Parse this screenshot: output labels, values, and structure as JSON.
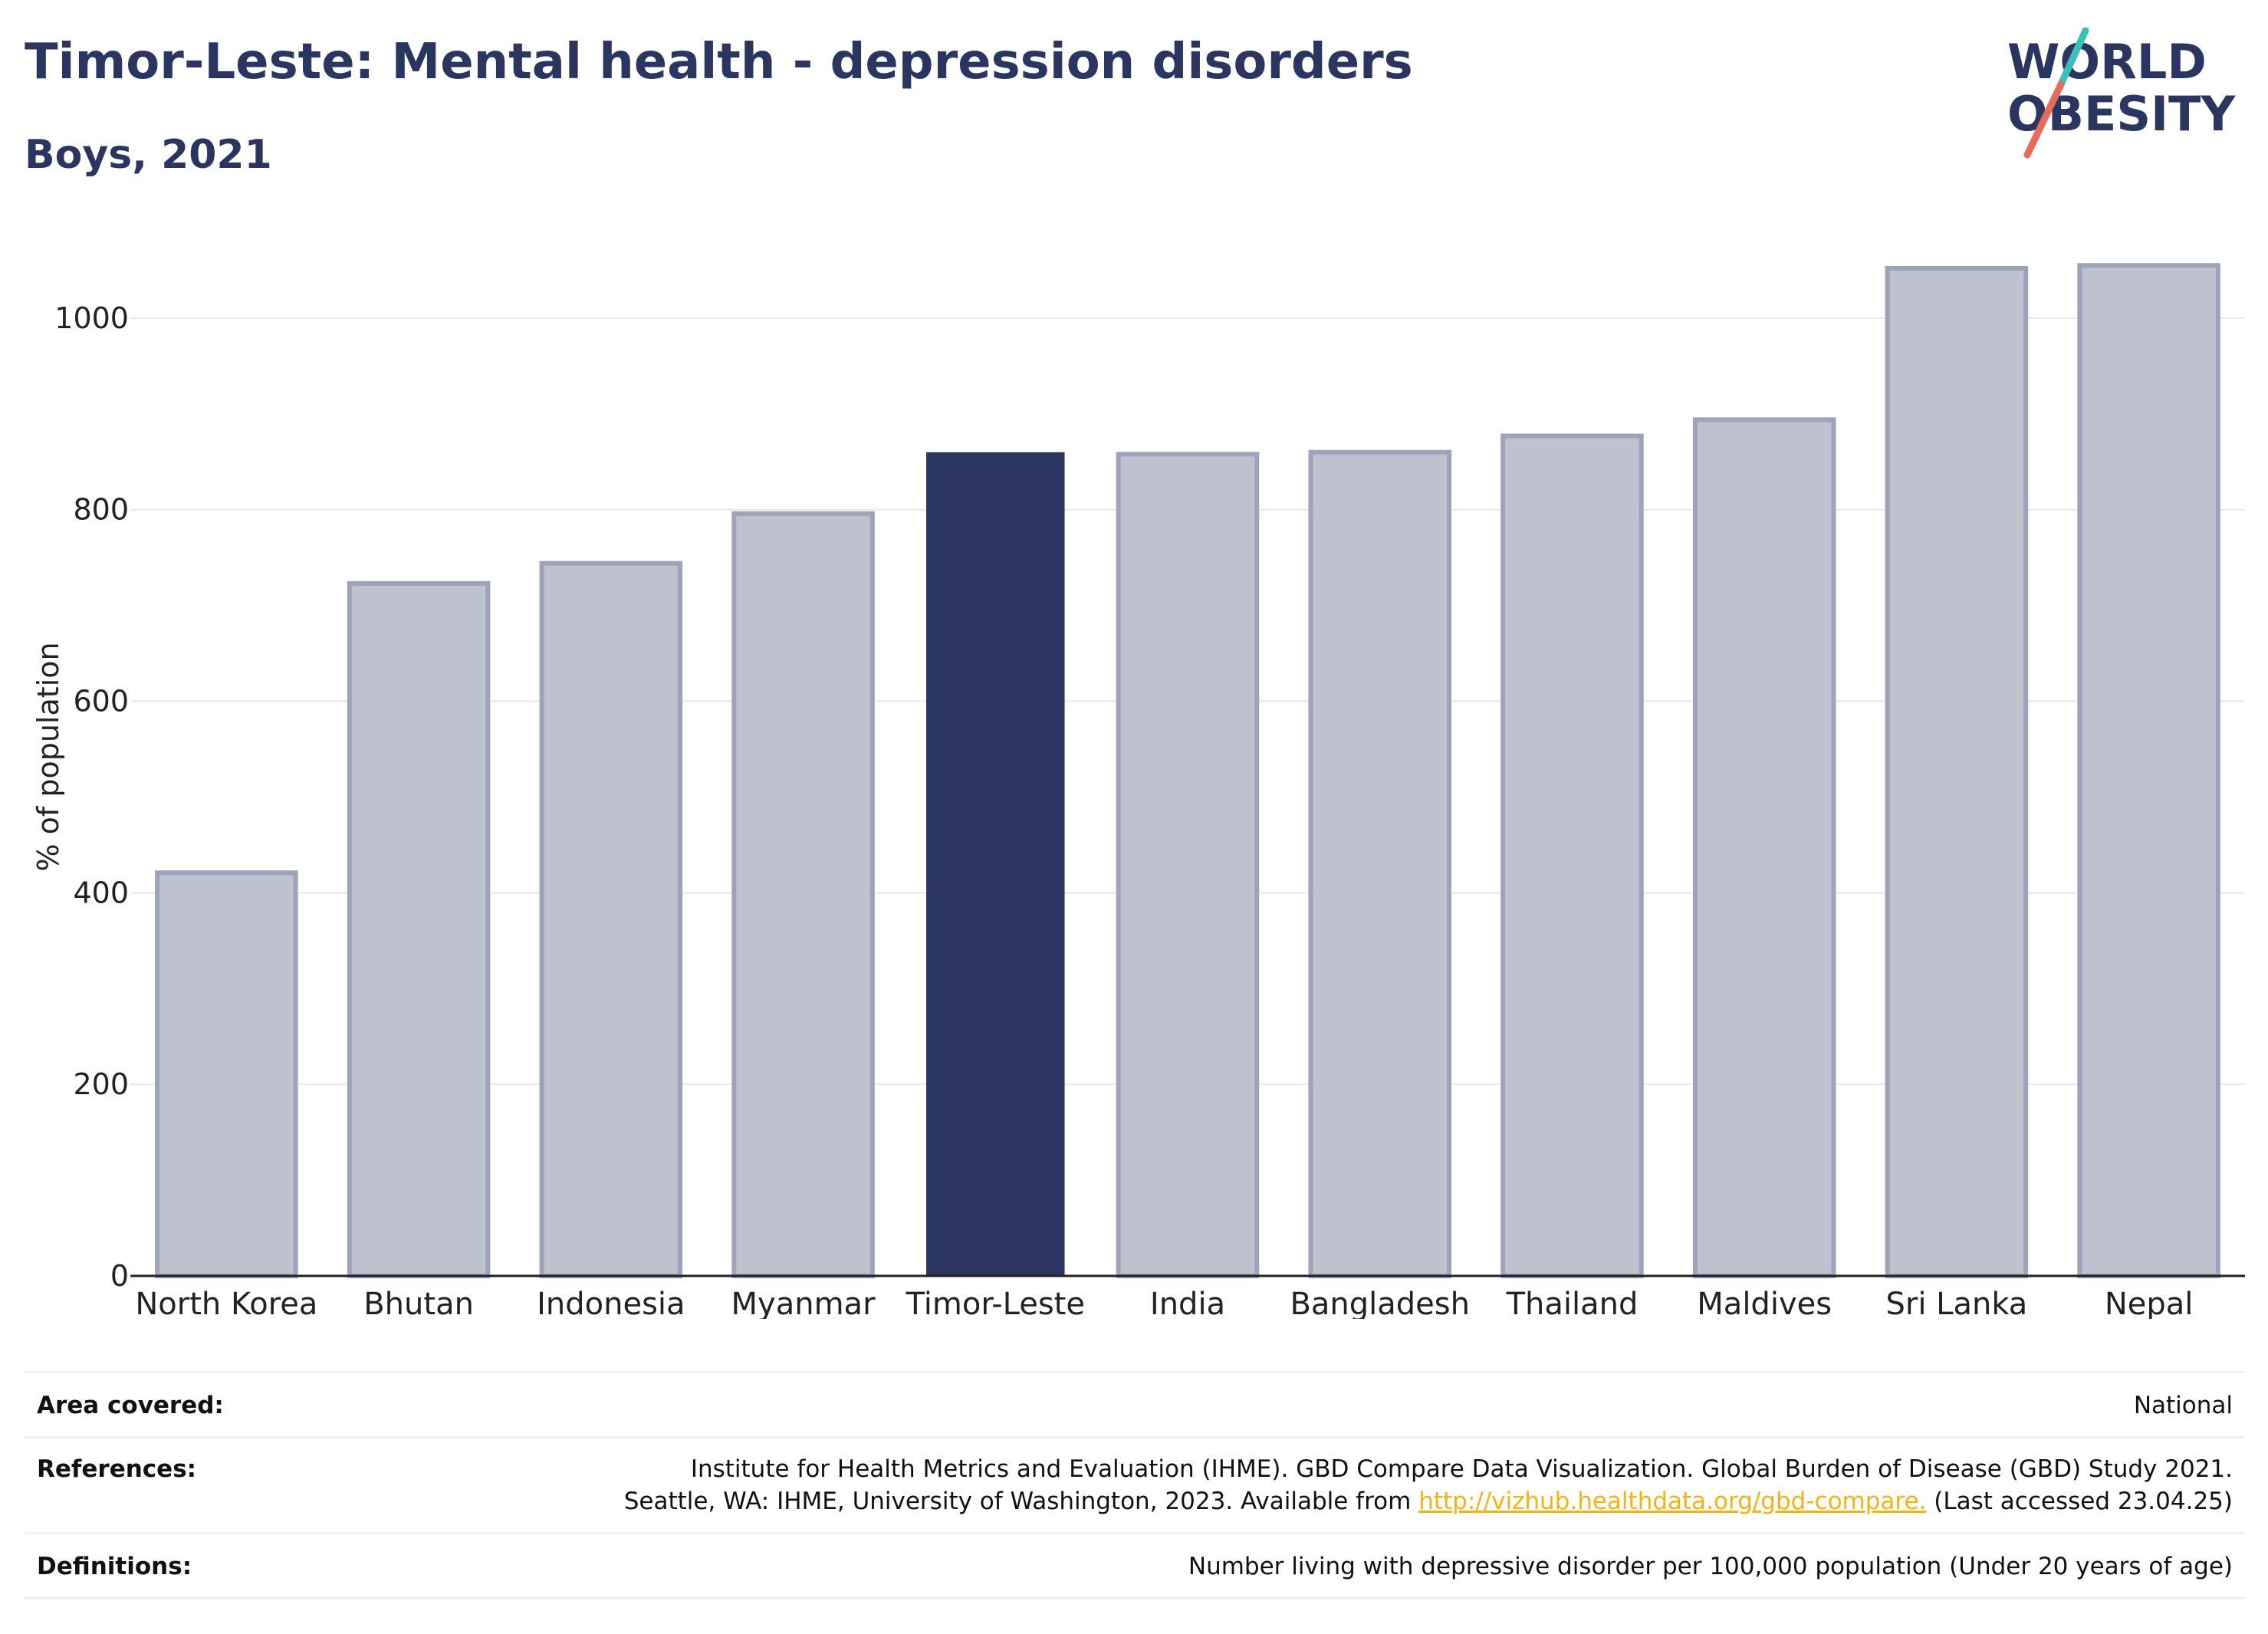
{
  "header": {
    "title": "Timor-Leste: Mental health - depression disorders",
    "subtitle": "Boys, 2021"
  },
  "logo": {
    "line1": "WORLD",
    "line2": "OBESITY"
  },
  "colors": {
    "highlight": "#2a3660",
    "bar_fill": "#bec2cf",
    "bar_stroke": "#9da3b8",
    "grid": "#e6e8ee",
    "text": "#2a3660",
    "link": "#f2b315",
    "logo_teal": "#3bbfb9",
    "logo_coral": "#e56b5b"
  },
  "chart_data": {
    "type": "bar",
    "title": "Timor-Leste: Mental health - depression disorders",
    "subtitle": "Boys, 2021",
    "xlabel": "",
    "ylabel": "% of population",
    "ylim": [
      0,
      1100
    ],
    "yticks": [
      0,
      200,
      400,
      600,
      800,
      1000
    ],
    "grid": true,
    "categories": [
      "North Korea",
      "Bhutan",
      "Indonesia",
      "Myanmar",
      "Timor-Leste",
      "India",
      "Bangladesh",
      "Thailand",
      "Maldives",
      "Sri Lanka",
      "Nepal"
    ],
    "values": [
      421,
      723,
      744,
      796,
      860,
      858,
      860,
      877,
      894,
      1052,
      1055
    ],
    "highlight": "Timor-Leste"
  },
  "meta": {
    "area_label": "Area covered:",
    "area_value": "National",
    "references_label": "References:",
    "references_line1": "Institute for Health Metrics and Evaluation (IHME). GBD Compare Data Visualization. Global Burden of Disease (GBD) Study 2021.",
    "references_line2_pre": "Seattle, WA: IHME, University of Washington, 2023. Available from ",
    "references_link": "http://vizhub.healthdata.org/gbd-compare.",
    "references_line2_post": " (Last accessed 23.04.25)",
    "definitions_label": "Definitions:",
    "definitions_value": "Number living with depressive disorder per 100,000 population (Under 20 years of age)"
  }
}
